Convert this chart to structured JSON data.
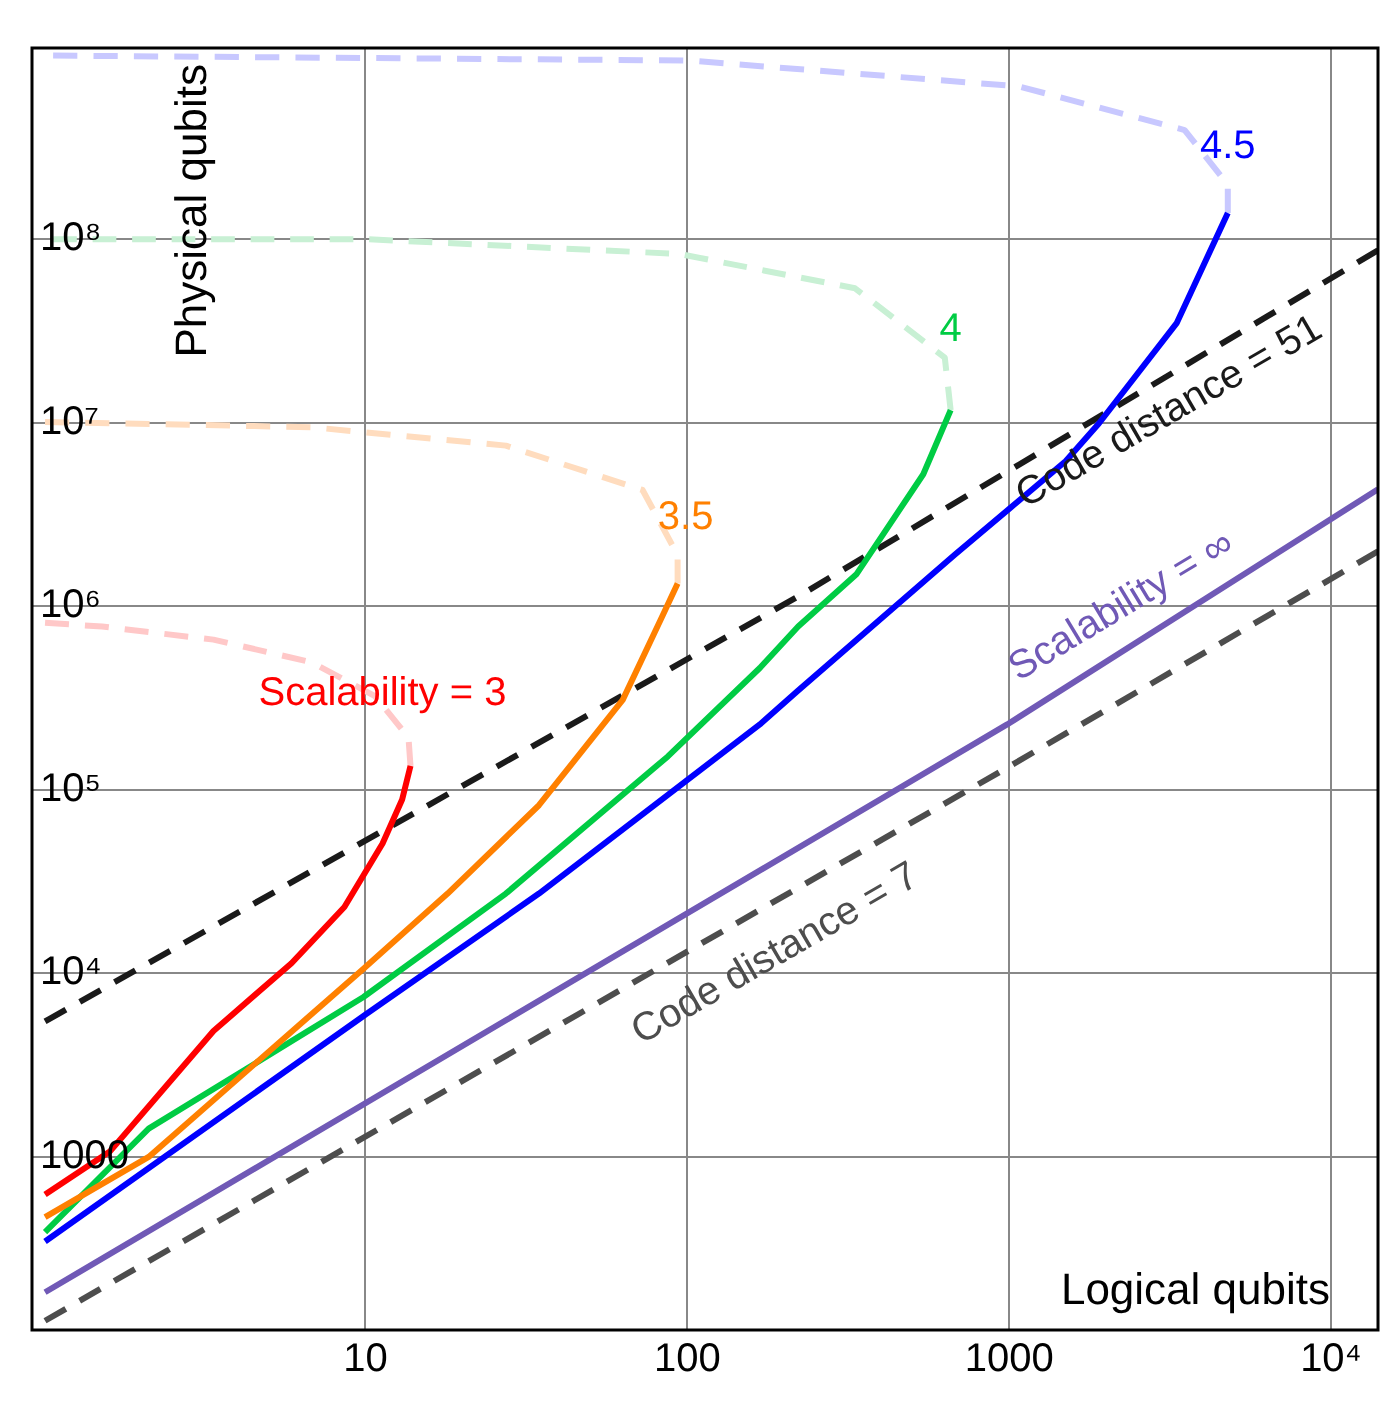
{
  "chart_data": {
    "type": "line",
    "xlabel": "Logical qubits",
    "ylabel": "Physical qubits",
    "log": "xy",
    "grid": true,
    "legend": false,
    "marker": "none",
    "xlim": [
      0.92,
      14000
    ],
    "ylim": [
      114,
      1100000000
    ],
    "xticks": [
      10,
      100,
      1000,
      {
        "value": 10000,
        "label": "10⁴"
      }
    ],
    "yticks": [
      1000,
      {
        "value": 10000,
        "label": "10⁴"
      },
      {
        "value": 100000,
        "label": "10⁵"
      },
      {
        "value": 1000000,
        "label": "10⁶"
      },
      {
        "value": 10000000,
        "label": "10⁷"
      },
      {
        "value": 100000000,
        "label": "10⁸"
      }
    ],
    "series": [
      {
        "name": "Scalability = 3",
        "color": "#ff0000",
        "line_style": "solid",
        "x": [
          1.01,
          1.61,
          3.37,
          5.89,
          8.6,
          11.3,
          13.0,
          13.8
        ],
        "values": [
          624,
          1075,
          4850,
          11350,
          23000,
          51000,
          88500,
          135000
        ]
      },
      {
        "color": "#ffc8c8",
        "line_style": "dashed",
        "x": [
          13.8,
          13.6,
          10.7,
          6.8,
          3.37,
          1.52,
          1.01
        ],
        "values": [
          135000,
          193000,
          324000,
          495000,
          658000,
          775000,
          813000
        ]
      },
      {
        "name": "3.5",
        "color": "#ff8000",
        "line_style": "solid",
        "x": [
          1.01,
          2.12,
          9.86,
          18,
          34.6,
          63,
          83.4,
          93.3
        ],
        "values": [
          470,
          1000,
          10600,
          27200,
          82400,
          309000,
          873000,
          1330000
        ]
      },
      {
        "color": "#ffdcbe",
        "line_style": "dashed",
        "x": [
          93.3,
          93.3,
          72.6,
          27.3,
          6.8,
          1.01
        ],
        "values": [
          1330000,
          1900000,
          4300000,
          7500000,
          9450000,
          10100000
        ]
      },
      {
        "name": "4",
        "color": "#00cc44",
        "line_style": "solid",
        "x": [
          1.01,
          2.12,
          9.86,
          27.3,
          87,
          168,
          221,
          336,
          541,
          658
        ],
        "values": [
          389,
          1425,
          7430,
          27200,
          152000,
          461000,
          775000,
          1500000,
          5240000,
          11700000
        ]
      },
      {
        "color": "#c8f0d4",
        "line_style": "dashed",
        "x": [
          658,
          631,
          332,
          94.6,
          10.1,
          1.07
        ],
        "values": [
          11700000,
          22600000,
          54000000,
          83000000,
          100000000,
          100000000
        ]
      },
      {
        "name": "4.5",
        "color": "#0000ff",
        "line_style": "solid",
        "x": [
          1.01,
          9.86,
          34.6,
          168,
          221,
          676,
          1500,
          1900,
          3320,
          4780
        ],
        "values": [
          346,
          5860,
          27200,
          227000,
          348000,
          1900000,
          6180000,
          9900000,
          35000000,
          139000000
        ]
      },
      {
        "color": "#c8c8ff",
        "line_style": "dashed",
        "x": [
          4780,
          4780,
          3510,
          1070,
          101,
          1.07
        ],
        "values": [
          139000000,
          198000000,
          393000000,
          680000000,
          940000000,
          1000000000
        ]
      },
      {
        "name": "Scalability = ∞",
        "color": "#7059b6",
        "line_style": "solid",
        "x": [
          1.01,
          986,
          14000
        ],
        "values": [
          183,
          227000,
          4340000
        ]
      },
      {
        "name": "Code distance = 51",
        "color": "#1a1a1a",
        "line_style": "dashed",
        "x": [
          1.01,
          221,
          14000
        ],
        "values": [
          5470,
          1130000,
          87000000
        ]
      },
      {
        "name": "Code distance = 7",
        "color": "#4d4d4d",
        "line_style": "dashed",
        "x": [
          1.01,
          986,
          14000
        ],
        "values": [
          128,
          132000,
          1990000
        ]
      }
    ]
  }
}
